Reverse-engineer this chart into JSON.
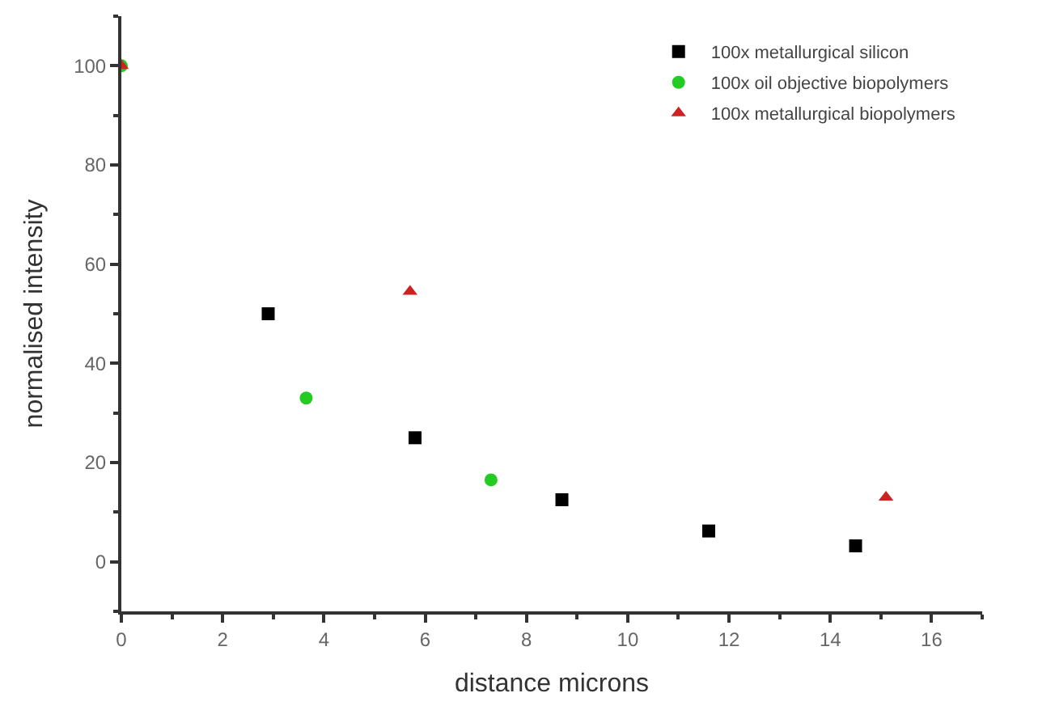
{
  "chart_data": {
    "type": "scatter",
    "xlabel": "distance microns",
    "ylabel": "normalised intensity",
    "xlim": [
      0,
      17
    ],
    "xticks": [
      0,
      2,
      4,
      6,
      8,
      10,
      12,
      14,
      16
    ],
    "ylim": [
      -10,
      110
    ],
    "yticks": [
      0,
      20,
      40,
      60,
      80,
      100
    ],
    "legend": "top right",
    "series": [
      {
        "name": "100x metallurgical silicon",
        "color": "#000000",
        "marker": "square",
        "x": [
          2.9,
          5.8,
          8.7,
          11.6,
          14.5
        ],
        "values": [
          50,
          25,
          12.5,
          6.2,
          3.2
        ]
      },
      {
        "name": "100x oil objective biopolymers",
        "color": "#22cc22",
        "marker": "circle",
        "x": [
          0,
          3.65,
          7.3
        ],
        "values": [
          100,
          33,
          16.5
        ]
      },
      {
        "name": "100x metallurgical biopolymers",
        "color": "#cc2222",
        "marker": "triangle",
        "x": [
          0,
          5.7,
          15.1
        ],
        "values": [
          100,
          54.5,
          13
        ]
      }
    ]
  }
}
